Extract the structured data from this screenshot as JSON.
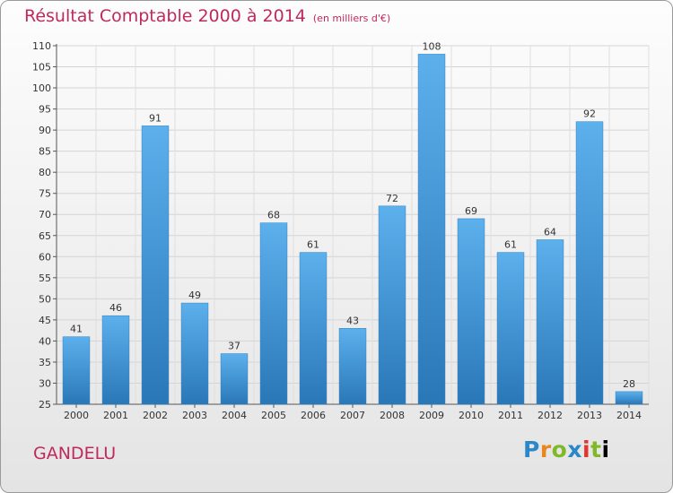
{
  "header": {
    "title": "Résultat Comptable 2000 à 2014",
    "unit": "(en milliers d'€)"
  },
  "footer": {
    "town": "GANDELU",
    "logo_letters": [
      "P",
      "r",
      "o",
      "x",
      "i",
      "t",
      "i"
    ]
  },
  "chart_data": {
    "type": "bar",
    "title": "Résultat Comptable 2000 à 2014",
    "subtitle": "(en milliers d'€)",
    "xlabel": "",
    "ylabel": "",
    "categories": [
      "2000",
      "2001",
      "2002",
      "2003",
      "2004",
      "2005",
      "2006",
      "2007",
      "2008",
      "2009",
      "2010",
      "2011",
      "2012",
      "2013",
      "2014"
    ],
    "values": [
      41,
      46,
      91,
      49,
      37,
      68,
      61,
      43,
      72,
      108,
      69,
      61,
      64,
      92,
      28
    ],
    "ylim": [
      25,
      110
    ],
    "yticks": [
      25,
      30,
      35,
      40,
      45,
      50,
      55,
      60,
      65,
      70,
      75,
      80,
      85,
      90,
      95,
      100,
      105,
      110
    ],
    "grid": true,
    "legend": "none",
    "bar_color": "#3f95d6",
    "label_color": "#333333"
  }
}
